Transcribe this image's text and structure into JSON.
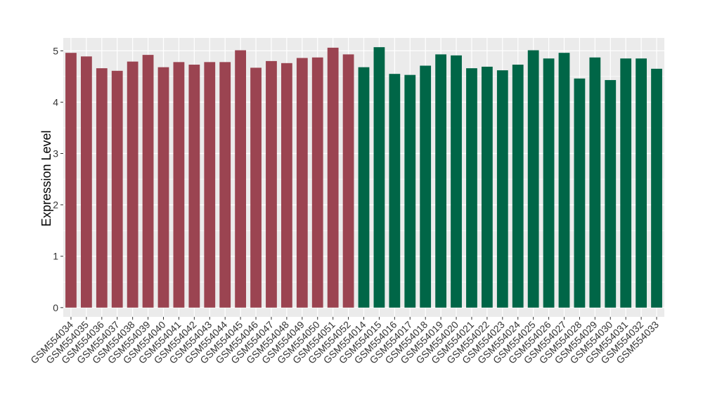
{
  "chart_data": {
    "type": "bar",
    "ylabel": "Expression Level",
    "ylim": [
      -0.18,
      5.25
    ],
    "yticks": [
      0,
      1,
      2,
      3,
      4,
      5
    ],
    "grid": true,
    "legend": "none",
    "background": "#ebebeb",
    "grid_color": "#ffffff",
    "categories": [
      "GSM554034",
      "GSM554035",
      "GSM554036",
      "GSM554037",
      "GSM554038",
      "GSM554039",
      "GSM554040",
      "GSM554041",
      "GSM554042",
      "GSM554043",
      "GSM554044",
      "GSM554045",
      "GSM554046",
      "GSM554047",
      "GSM554048",
      "GSM554049",
      "GSM554050",
      "GSM554051",
      "GSM554052",
      "GSM554014",
      "GSM554015",
      "GSM554016",
      "GSM554017",
      "GSM554018",
      "GSM554019",
      "GSM554020",
      "GSM554021",
      "GSM554022",
      "GSM554023",
      "GSM554024",
      "GSM554025",
      "GSM554026",
      "GSM554027",
      "GSM554028",
      "GSM554029",
      "GSM554030",
      "GSM554031",
      "GSM554032",
      "GSM554033"
    ],
    "values": [
      4.96,
      4.89,
      4.66,
      4.61,
      4.79,
      4.92,
      4.68,
      4.78,
      4.73,
      4.78,
      4.78,
      5.01,
      4.67,
      4.8,
      4.76,
      4.86,
      4.87,
      5.06,
      4.93,
      4.68,
      5.07,
      4.55,
      4.53,
      4.71,
      4.93,
      4.91,
      4.66,
      4.69,
      4.62,
      4.73,
      5.01,
      4.85,
      4.96,
      4.46,
      4.87,
      4.43,
      4.85,
      4.85,
      4.65
    ],
    "groups": [
      {
        "color": "#9b4451",
        "count": 19
      },
      {
        "color": "#006647",
        "count": 20
      }
    ]
  }
}
